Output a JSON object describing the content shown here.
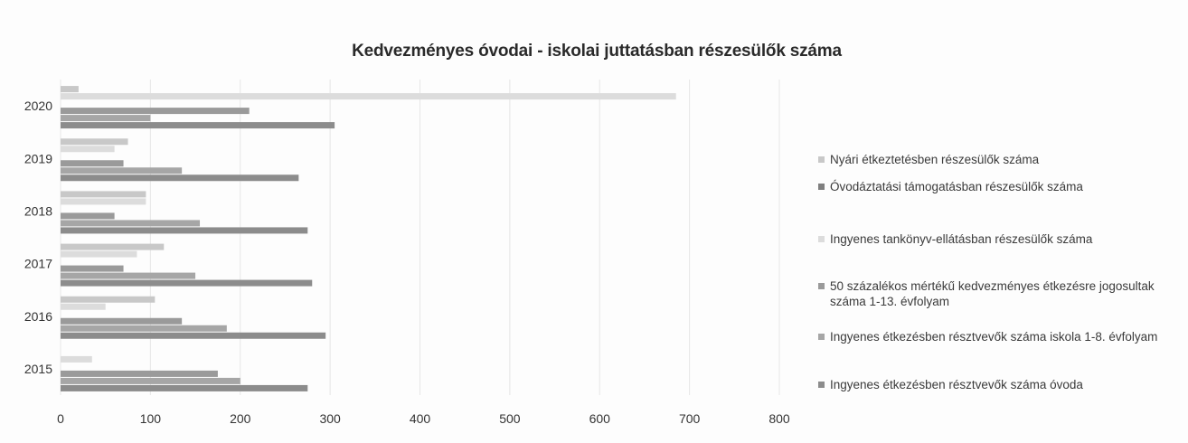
{
  "chart_data": {
    "type": "bar",
    "orientation": "horizontal",
    "title": "Kedvezményes óvodai - iskolai juttatásban részesülők száma",
    "categories": [
      "2015",
      "2016",
      "2017",
      "2018",
      "2019",
      "2020"
    ],
    "xlim": [
      0,
      800
    ],
    "x_ticks": [
      "0",
      "100",
      "200",
      "300",
      "400",
      "500",
      "600",
      "700",
      "800"
    ],
    "grid": true,
    "legend_position": "right",
    "series": [
      {
        "name": "Ingyenes étkezésben résztvevők száma óvoda",
        "color": "#8c8c8c",
        "values": [
          275,
          295,
          280,
          275,
          265,
          305
        ]
      },
      {
        "name": "Ingyenes étkezésben résztvevők száma iskola 1-8. évfolyam",
        "color": "#a6a6a6",
        "values": [
          200,
          185,
          150,
          155,
          135,
          100
        ]
      },
      {
        "name": "50 százalékos mértékű kedvezményes étkezésre jogosultak száma 1-13. évfolyam",
        "color": "#9a9a9a",
        "values": [
          175,
          135,
          70,
          60,
          70,
          210
        ]
      },
      {
        "name": "Ingyenes tankönyv-ellátásban részesülők száma",
        "color": "#dcdcdc",
        "values": [
          35,
          50,
          85,
          95,
          60,
          685
        ]
      },
      {
        "name": "Óvodáztatási támogatásban részesülők száma",
        "color": "#7f7f7f",
        "values": [
          0,
          0,
          0,
          0,
          0,
          0
        ]
      },
      {
        "name": "Nyári étkeztetésben részesülők száma",
        "color": "#c8c8c8",
        "values": [
          0,
          105,
          115,
          95,
          75,
          20
        ]
      }
    ]
  }
}
